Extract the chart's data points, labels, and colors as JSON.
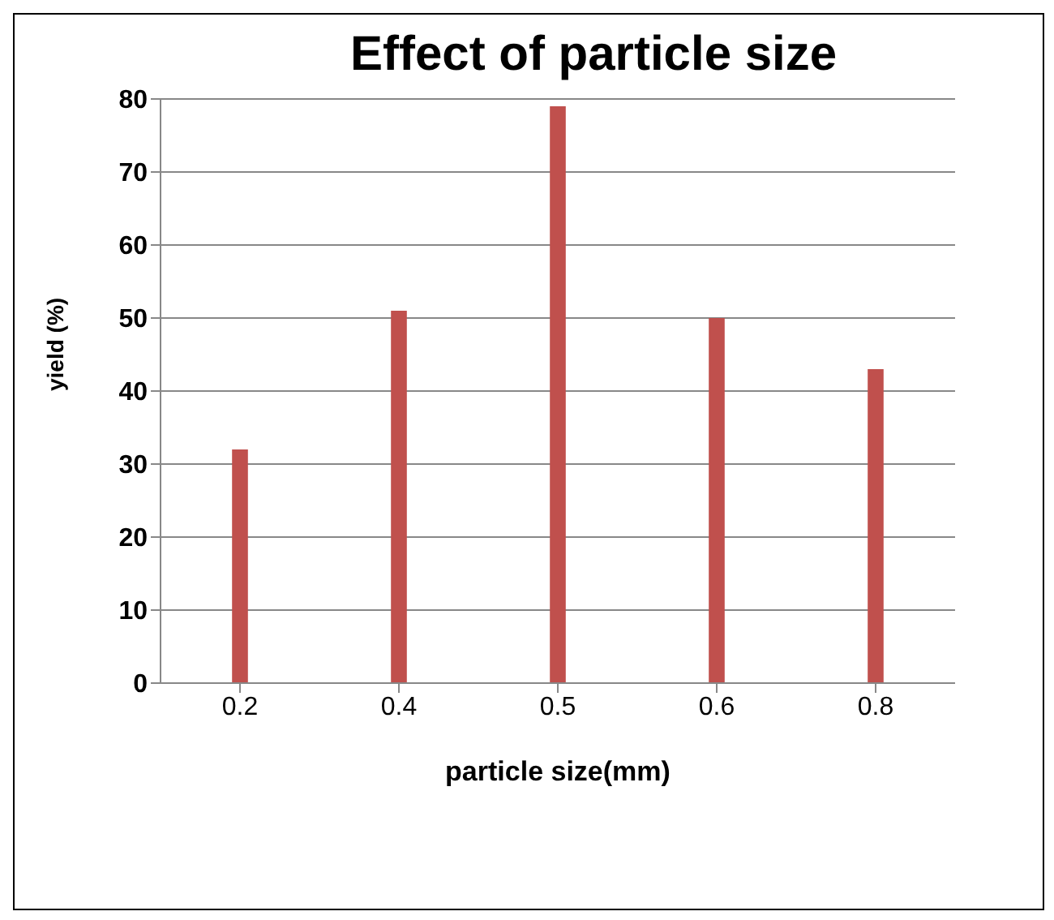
{
  "chart_data": {
    "type": "bar",
    "title": "Effect of particle size",
    "xlabel": "particle size(mm)",
    "ylabel": "yield (%)",
    "categories": [
      "0.2",
      "0.4",
      "0.5",
      "0.6",
      "0.8"
    ],
    "values": [
      32,
      51,
      79,
      50,
      43
    ],
    "color": "#c0504d",
    "ylim": [
      0,
      80
    ],
    "yticks": [
      0,
      10,
      20,
      30,
      40,
      50,
      60,
      70,
      80
    ],
    "grid": "y"
  }
}
